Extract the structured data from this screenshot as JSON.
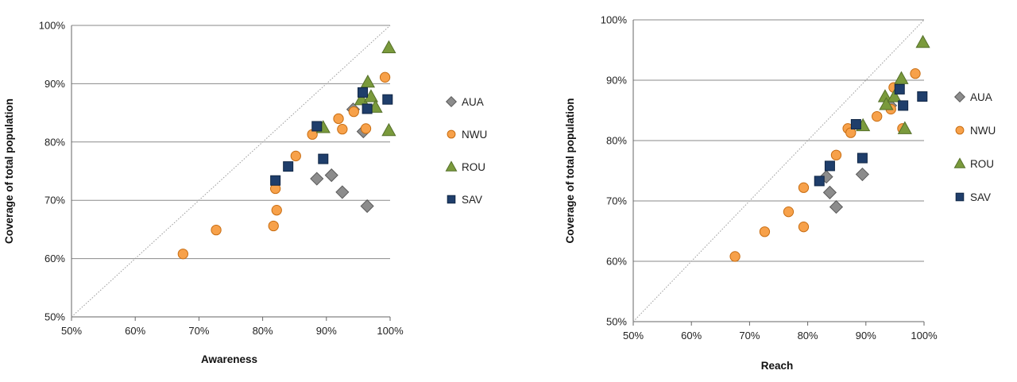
{
  "series_colors": {
    "AUA": {
      "fill": "#8c8c8c",
      "stroke": "#5a5a5a",
      "marker": "diamond"
    },
    "NWU": {
      "fill": "#f7a14a",
      "stroke": "#c86d12",
      "marker": "circle"
    },
    "ROU": {
      "fill": "#7a9a3c",
      "stroke": "#55702a",
      "marker": "triangle"
    },
    "SAV": {
      "fill": "#1f3e6b",
      "stroke": "#102645",
      "marker": "square"
    }
  },
  "chart_data": [
    {
      "type": "scatter",
      "title": "",
      "xlabel": "Awareness",
      "ylabel": "Coverage of total population",
      "xlim": [
        50,
        100
      ],
      "ylim": [
        50,
        100
      ],
      "x_ticks": [
        "50%",
        "60%",
        "70%",
        "80%",
        "90%",
        "100%"
      ],
      "y_ticks": [
        "50%",
        "60%",
        "70%",
        "80%",
        "90%",
        "100%"
      ],
      "gridlines": "horizontal",
      "reference_line": "diagonal dotted x=y",
      "legend_position": "right",
      "series": [
        {
          "name": "AUA",
          "points": [
            [
              88.5,
              73.7
            ],
            [
              90.8,
              74.3
            ],
            [
              92.5,
              71.4
            ],
            [
              94.2,
              85.6
            ],
            [
              95.8,
              81.8
            ],
            [
              96.4,
              69.0
            ]
          ]
        },
        {
          "name": "NWU",
          "points": [
            [
              67.5,
              60.8
            ],
            [
              72.7,
              64.9
            ],
            [
              81.7,
              65.6
            ],
            [
              82.0,
              72.0
            ],
            [
              82.2,
              68.3
            ],
            [
              85.2,
              77.6
            ],
            [
              87.8,
              81.3
            ],
            [
              91.9,
              84.0
            ],
            [
              92.5,
              82.2
            ],
            [
              94.3,
              85.2
            ],
            [
              96.2,
              82.3
            ],
            [
              99.2,
              91.1
            ]
          ]
        },
        {
          "name": "ROU",
          "points": [
            [
              89.5,
              82.5
            ],
            [
              95.5,
              87.3
            ],
            [
              96.5,
              90.3
            ],
            [
              97.0,
              87.8
            ],
            [
              97.7,
              86.0
            ],
            [
              99.8,
              82.0
            ],
            [
              99.8,
              96.2
            ]
          ]
        },
        {
          "name": "SAV",
          "points": [
            [
              82.0,
              73.4
            ],
            [
              84.0,
              75.8
            ],
            [
              88.5,
              82.7
            ],
            [
              89.5,
              77.1
            ],
            [
              95.7,
              88.5
            ],
            [
              96.4,
              85.7
            ],
            [
              99.6,
              87.3
            ]
          ]
        }
      ]
    },
    {
      "type": "scatter",
      "title": "",
      "xlabel": "Reach",
      "ylabel": "Coverage of total population",
      "xlim": [
        50,
        100
      ],
      "ylim": [
        50,
        100
      ],
      "x_ticks": [
        "50%",
        "60%",
        "70%",
        "80%",
        "90%",
        "100%"
      ],
      "y_ticks": [
        "50%",
        "60%",
        "70%",
        "80%",
        "90%",
        "100%"
      ],
      "gridlines": "horizontal",
      "reference_line": "diagonal dotted x=y",
      "legend_position": "right",
      "series": [
        {
          "name": "AUA",
          "points": [
            [
              83.2,
              74.0
            ],
            [
              83.8,
              71.4
            ],
            [
              84.9,
              69.0
            ],
            [
              89.4,
              74.4
            ],
            [
              94.2,
              85.8
            ]
          ]
        },
        {
          "name": "NWU",
          "points": [
            [
              67.5,
              60.8
            ],
            [
              72.6,
              64.9
            ],
            [
              76.7,
              68.2
            ],
            [
              79.3,
              65.7
            ],
            [
              79.3,
              72.2
            ],
            [
              84.9,
              77.6
            ],
            [
              86.9,
              82.0
            ],
            [
              87.4,
              81.3
            ],
            [
              91.9,
              84.0
            ],
            [
              94.3,
              85.2
            ],
            [
              94.8,
              88.8
            ],
            [
              96.3,
              82.0
            ],
            [
              98.5,
              91.1
            ]
          ]
        },
        {
          "name": "ROU",
          "points": [
            [
              89.5,
              82.5
            ],
            [
              93.3,
              87.3
            ],
            [
              93.5,
              86.0
            ],
            [
              94.9,
              87.3
            ],
            [
              96.1,
              90.3
            ],
            [
              96.7,
              82.0
            ],
            [
              99.8,
              96.3
            ]
          ]
        },
        {
          "name": "SAV",
          "points": [
            [
              82.0,
              73.3
            ],
            [
              83.8,
              75.8
            ],
            [
              88.3,
              82.7
            ],
            [
              89.4,
              77.1
            ],
            [
              95.8,
              88.5
            ],
            [
              96.4,
              85.8
            ],
            [
              99.7,
              87.3
            ]
          ]
        }
      ]
    }
  ]
}
